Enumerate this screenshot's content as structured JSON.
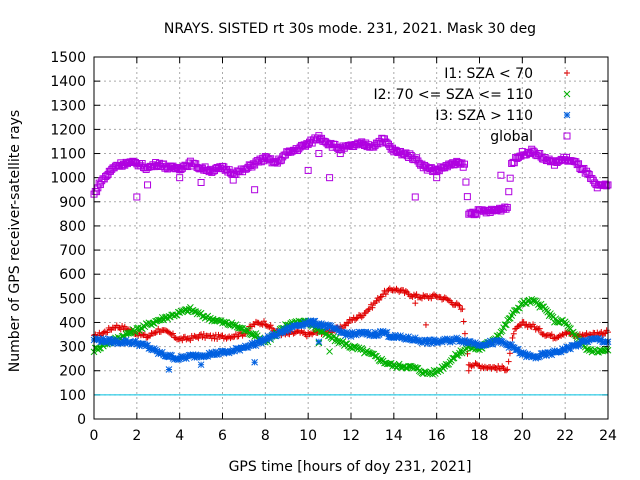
{
  "chart_data": {
    "type": "scatter",
    "title": "NRAYS. SISTED rt 30s mode. 231, 2021. Mask 30 deg",
    "xlabel": "GPS time [hours of doy 231, 2021]",
    "ylabel": "Number of GPS receiver-satellite rays",
    "xlim": [
      0,
      24
    ],
    "ylim": [
      0,
      1500
    ],
    "xticks": [
      0,
      2,
      4,
      6,
      8,
      10,
      12,
      14,
      16,
      18,
      20,
      22,
      24
    ],
    "yticks": [
      0,
      100,
      200,
      300,
      400,
      500,
      600,
      700,
      800,
      900,
      1000,
      1100,
      1200,
      1300,
      1400,
      1500
    ],
    "grid": true,
    "legend_position": "top-right",
    "mask_line": {
      "y": 100,
      "color": "#00c0e0"
    },
    "series": [
      {
        "name": "I1: SZA < 70",
        "marker": "+",
        "color": "#e00000",
        "x": [
          0,
          0.5,
          1,
          1.5,
          2,
          2.5,
          3,
          3.5,
          4,
          4.5,
          5,
          5.5,
          6,
          6.5,
          7,
          7.5,
          8,
          8.5,
          9,
          9.5,
          10,
          10.5,
          11,
          11.5,
          12,
          12.5,
          13,
          13.5,
          14,
          14.5,
          15,
          15.5,
          16,
          16.5,
          17,
          17.2,
          17.5,
          18,
          18.5,
          19,
          19.3,
          19.6,
          20,
          20.5,
          21,
          21.5,
          22,
          22.5,
          23,
          23.5,
          24
        ],
        "y": [
          340,
          360,
          385,
          375,
          355,
          340,
          370,
          355,
          330,
          335,
          345,
          340,
          340,
          345,
          355,
          395,
          400,
          360,
          350,
          360,
          350,
          360,
          365,
          375,
          410,
          430,
          470,
          520,
          540,
          525,
          510,
          505,
          510,
          495,
          470,
          450,
          230,
          220,
          215,
          210,
          210,
          360,
          395,
          385,
          355,
          340,
          360,
          345,
          350,
          355,
          360
        ],
        "outliers_x": [
          15,
          15.5,
          17.5
        ],
        "outliers_y": [
          480,
          390,
          200
        ]
      },
      {
        "name": "I2: 70 <= SZA <= 110",
        "marker": "x",
        "color": "#00b000",
        "x": [
          0,
          0.5,
          1,
          1.5,
          2,
          2.5,
          3,
          3.5,
          4,
          4.5,
          5,
          5.5,
          6,
          6.5,
          7,
          7.5,
          8,
          8.5,
          9,
          9.5,
          10,
          10.5,
          11,
          11.5,
          12,
          12.5,
          13,
          13.5,
          14,
          14.5,
          15,
          15.5,
          16,
          16.5,
          17,
          17.5,
          18,
          18.5,
          19,
          19.5,
          20,
          20.5,
          21,
          21.5,
          22,
          22.5,
          23,
          23.5,
          24
        ],
        "y": [
          285,
          310,
          330,
          350,
          370,
          390,
          410,
          425,
          440,
          455,
          430,
          415,
          400,
          390,
          370,
          350,
          320,
          350,
          390,
          405,
          400,
          370,
          340,
          320,
          300,
          285,
          265,
          240,
          220,
          220,
          210,
          190,
          195,
          230,
          270,
          300,
          290,
          320,
          360,
          430,
          480,
          490,
          460,
          410,
          400,
          340,
          290,
          280,
          285
        ],
        "outliers_x": [
          10.5,
          11
        ],
        "outliers_y": [
          315,
          280
        ]
      },
      {
        "name": "I3: SZA > 110",
        "marker": "*",
        "color": "#0060e0",
        "x": [
          0,
          0.5,
          1,
          1.5,
          2,
          2.5,
          3,
          3.5,
          4,
          4.5,
          5,
          5.5,
          6,
          6.5,
          7,
          7.5,
          8,
          8.5,
          9,
          9.5,
          10,
          10.5,
          11,
          11.5,
          12,
          12.5,
          13,
          13.5,
          14,
          14.5,
          15,
          15.5,
          16,
          16.5,
          17,
          17.5,
          18,
          18.5,
          19,
          19.5,
          20,
          20.5,
          21,
          21.5,
          22,
          22.5,
          23,
          23.5,
          24
        ],
        "y": [
          330,
          325,
          320,
          320,
          315,
          300,
          275,
          260,
          250,
          260,
          265,
          270,
          275,
          280,
          300,
          310,
          330,
          350,
          370,
          390,
          400,
          395,
          380,
          360,
          350,
          355,
          350,
          360,
          340,
          335,
          330,
          320,
          320,
          325,
          330,
          320,
          310,
          315,
          320,
          300,
          270,
          255,
          265,
          275,
          290,
          305,
          325,
          330,
          320
        ],
        "outliers_x": [
          3.5,
          5,
          7.5,
          10.5
        ],
        "outliers_y": [
          205,
          225,
          235,
          320
        ]
      },
      {
        "name": "global",
        "marker": "square",
        "color": "#b000e0",
        "x": [
          0,
          0.3,
          0.6,
          1,
          1.5,
          2,
          2.5,
          3,
          3.5,
          4,
          4.5,
          5,
          5.5,
          6,
          6.5,
          7,
          7.5,
          8,
          8.5,
          9,
          9.5,
          10,
          10.5,
          11,
          11.5,
          12,
          12.5,
          13,
          13.5,
          14,
          14.5,
          15,
          15.5,
          16,
          16.5,
          17,
          17.3,
          17.5,
          18,
          18.5,
          19,
          19.3,
          19.5,
          20,
          20.5,
          21,
          21.5,
          22,
          22.5,
          23,
          23.5,
          24
        ],
        "y": [
          930,
          980,
          1010,
          1050,
          1060,
          1060,
          1040,
          1060,
          1040,
          1040,
          1060,
          1040,
          1030,
          1040,
          1020,
          1030,
          1060,
          1080,
          1060,
          1100,
          1120,
          1140,
          1170,
          1140,
          1120,
          1130,
          1140,
          1130,
          1160,
          1110,
          1100,
          1080,
          1040,
          1030,
          1050,
          1060,
          1050,
          850,
          860,
          860,
          870,
          880,
          1060,
          1100,
          1110,
          1080,
          1060,
          1080,
          1060,
          1020,
          960,
          970
        ],
        "outliers_x": [
          2,
          2.5,
          4,
          5,
          6.5,
          7.5,
          10,
          10.5,
          11,
          11.5,
          15,
          16,
          19
        ],
        "outliers_y": [
          920,
          970,
          1000,
          980,
          990,
          950,
          1030,
          1100,
          1000,
          1100,
          920,
          1000,
          1010
        ]
      }
    ]
  }
}
